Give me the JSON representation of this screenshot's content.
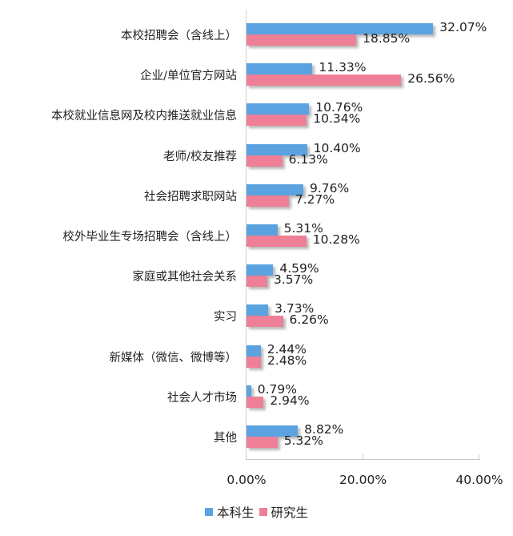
{
  "chart_data": {
    "type": "bar",
    "orientation": "horizontal",
    "title": "",
    "xlabel": "",
    "ylabel": "",
    "xlim": [
      0,
      40
    ],
    "x_ticks": [
      "0.00%",
      "20.00%",
      "40.00%"
    ],
    "grid": false,
    "legend_position": "bottom",
    "categories": [
      "本校招聘会（含线上）",
      "企业/单位官方网站",
      "本校就业信息网及校内推送就业信息",
      "老师/校友推荐",
      "社会招聘求职网站",
      "校外毕业生专场招聘会（含线上）",
      "家庭或其他社会关系",
      "实习",
      "新媒体（微信、微博等）",
      "社会人才市场",
      "其他"
    ],
    "series": [
      {
        "name": "本科生",
        "color": "#5ba3e0",
        "values": [
          32.07,
          11.33,
          10.76,
          10.4,
          9.76,
          5.31,
          4.59,
          3.73,
          2.44,
          0.79,
          8.82
        ],
        "labels": [
          "32.07%",
          "11.33%",
          "10.76%",
          "10.40%",
          "9.76%",
          "5.31%",
          "4.59%",
          "3.73%",
          "2.44%",
          "0.79%",
          "8.82%"
        ]
      },
      {
        "name": "研究生",
        "color": "#ee7f96",
        "values": [
          18.85,
          26.56,
          10.34,
          6.13,
          7.27,
          10.28,
          3.57,
          6.26,
          2.48,
          2.94,
          5.32
        ],
        "labels": [
          "18.85%",
          "26.56%",
          "10.34%",
          "6.13%",
          "7.27%",
          "10.28%",
          "3.57%",
          "6.26%",
          "2.48%",
          "2.94%",
          "5.32%"
        ]
      }
    ]
  },
  "legend": {
    "items": [
      {
        "label": "本科生",
        "color": "#5ba3e0"
      },
      {
        "label": "研究生",
        "color": "#ee7f96"
      }
    ]
  }
}
